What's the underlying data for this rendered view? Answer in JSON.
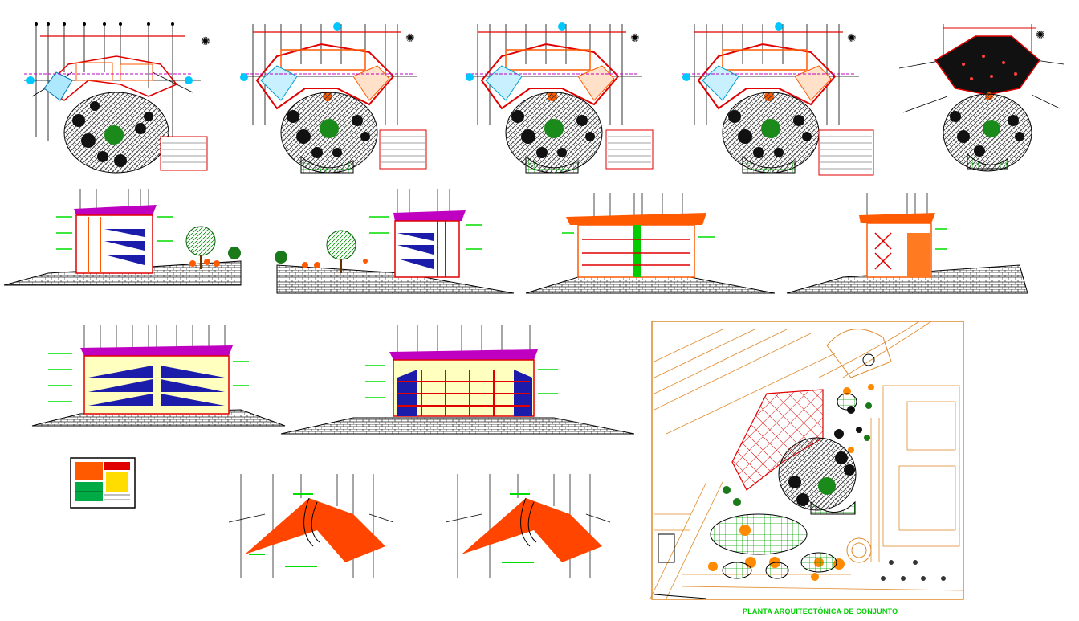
{
  "drawing": {
    "caption": "PLANTA ARQUITECTÓNICA DE CONJUNTO",
    "sheet_count": 5,
    "colors": {
      "background": "#ffffff",
      "axes": "#000000",
      "structure_red": "#e00000",
      "roof_orange": "#ff5a00",
      "site_orange": "#e08a2a",
      "glass_blue": "#1c1caa",
      "cyan": "#00c8ff",
      "magenta": "#c000c0",
      "dims_green": "#00dd00",
      "ground_hatch": "#333333"
    }
  }
}
